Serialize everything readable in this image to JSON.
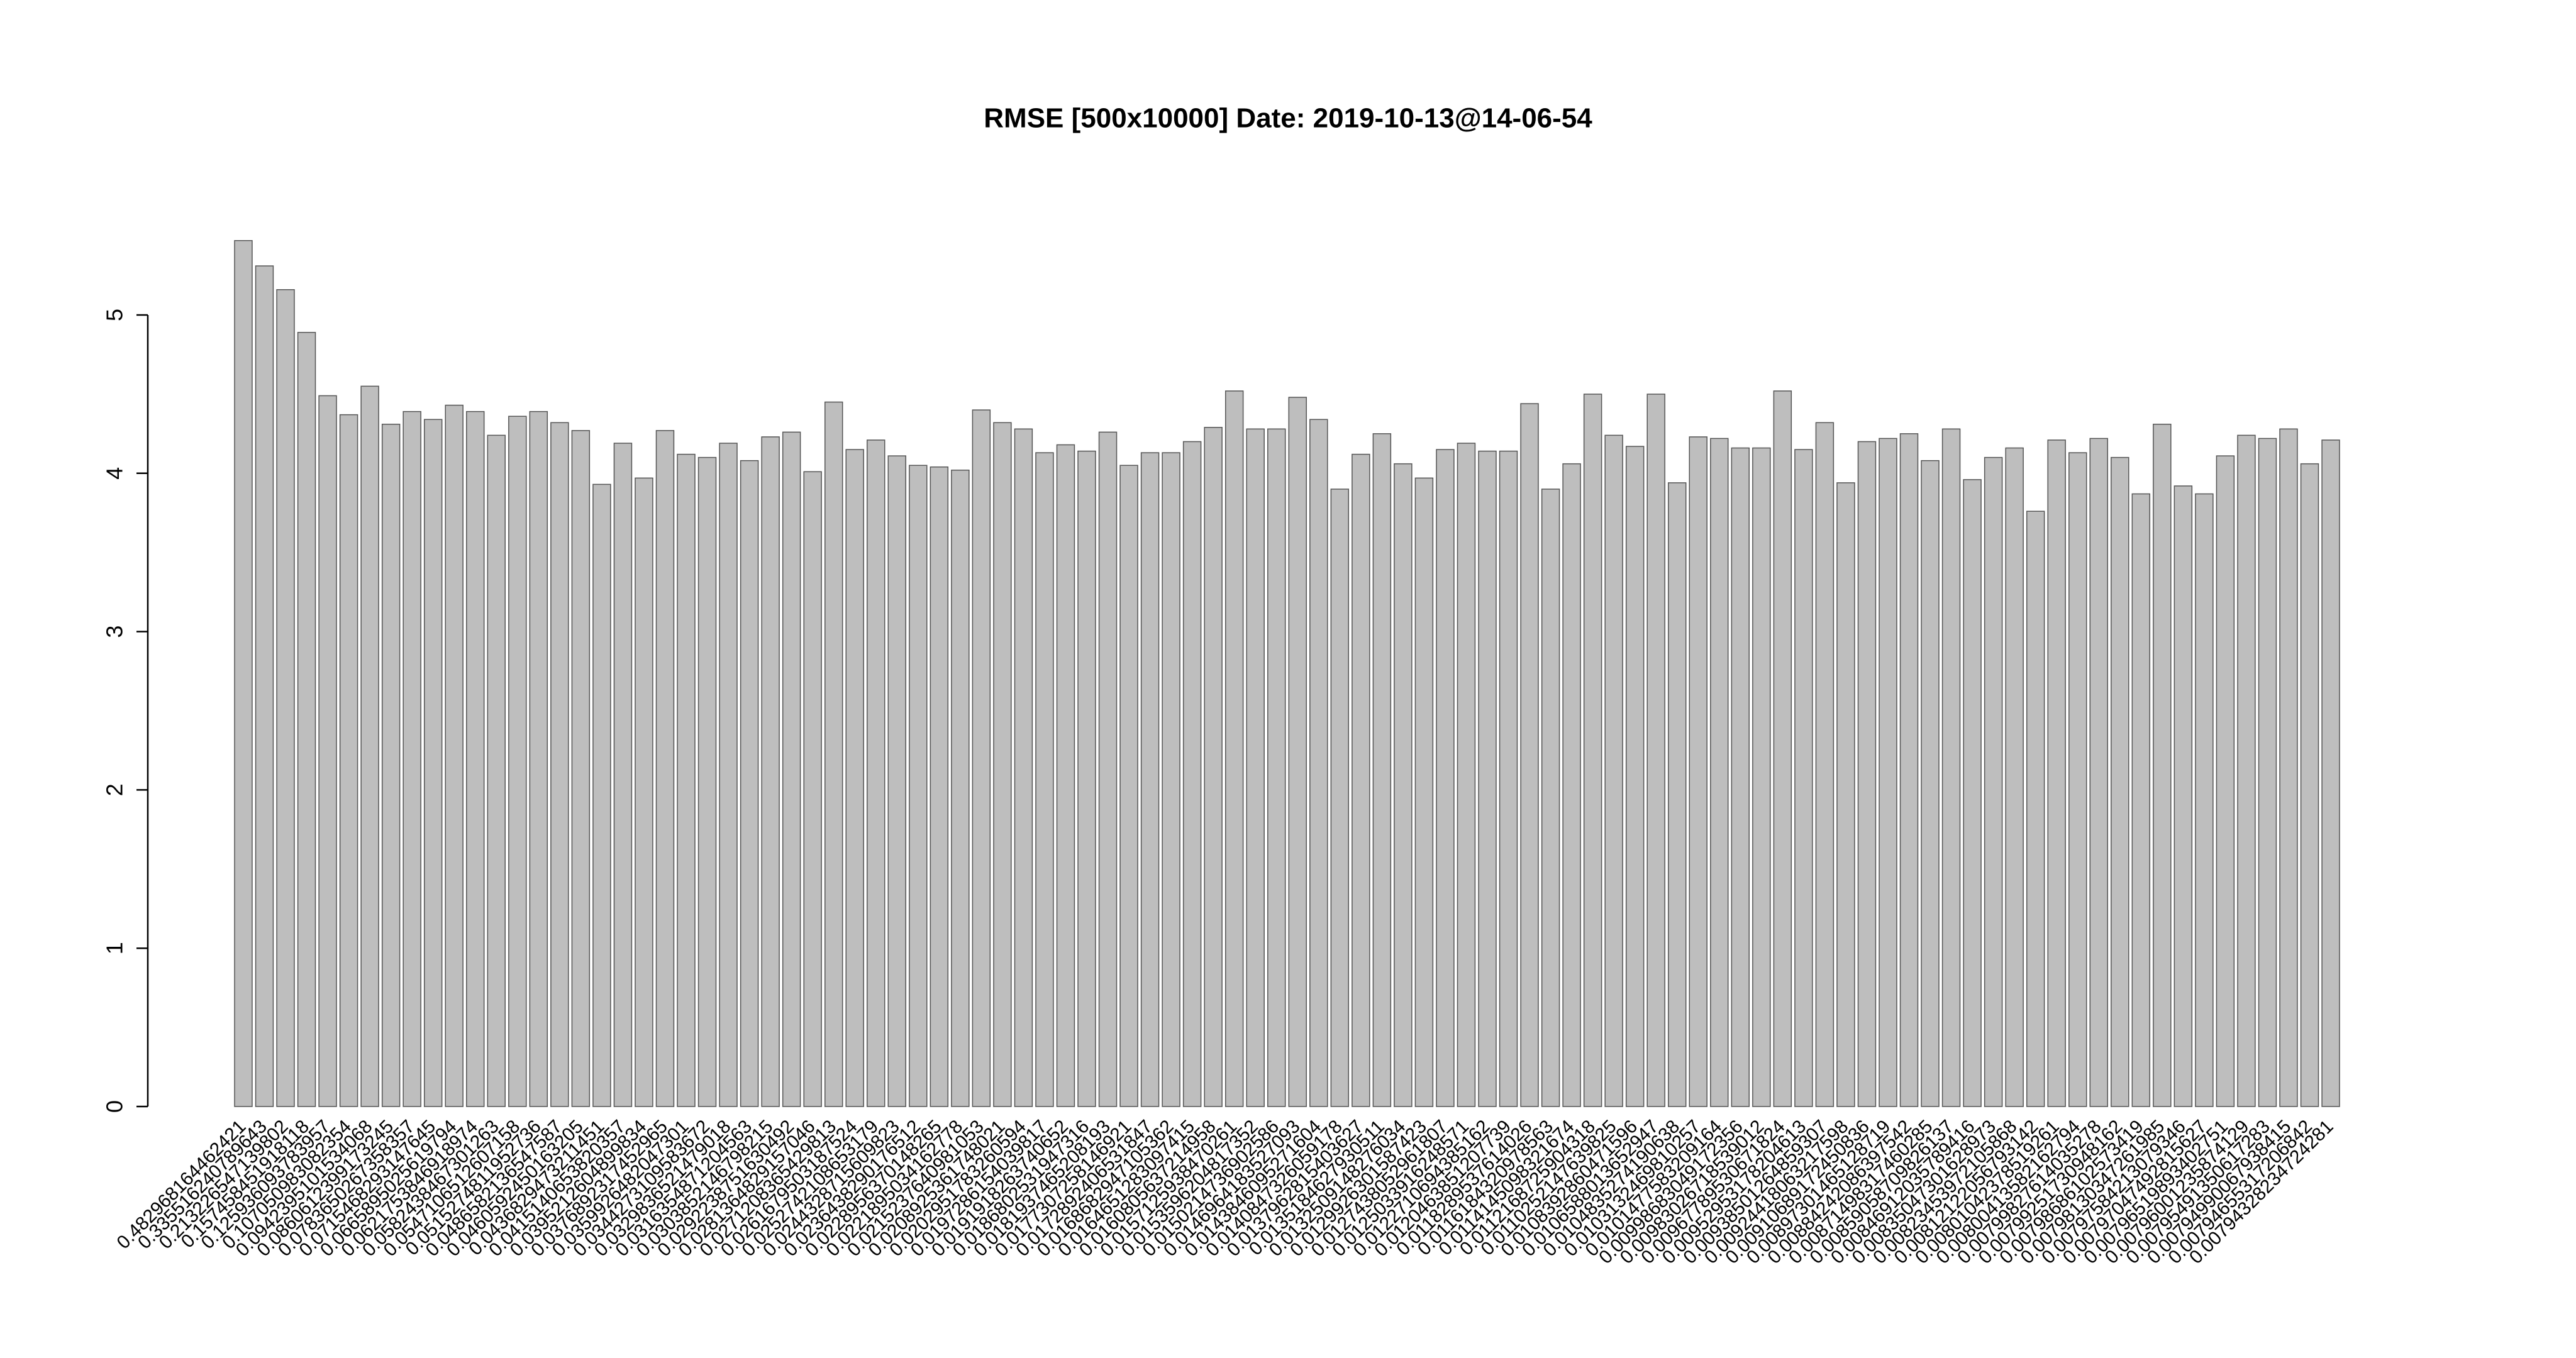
{
  "chart_data": {
    "type": "bar",
    "title": "RMSE [500x10000] Date: 2019-10-13@14-06-54",
    "categories": [
      "0.482968164462421",
      "0.335516240789643",
      "0.213226547139802",
      "0.157458451918118",
      "0.125936093783957",
      "0.107050983082354",
      "0.0942395101534068",
      "0.0860612399173245",
      "0.0783650267358357",
      "0.0715468293147645",
      "0.0665895025619794",
      "0.0621753846918974",
      "0.0582438467301263",
      "0.0547106512607158",
      "0.0515274811952736",
      "0.0486582136547587",
      "0.0460592450163205",
      "0.0436829473211451",
      "0.0415140653820357",
      "0.0395212604899834",
      "0.0376892317452965",
      "0.0359926482047301",
      "0.0344273109583672",
      "0.0329836521479018",
      "0.0316354871204563",
      "0.0303852146798215",
      "0.0292238751630492",
      "0.0281364829157046",
      "0.0271208365429813",
      "0.0261679503187524",
      "0.0252742108653179",
      "0.0244328715609823",
      "0.0236438290176512",
      "0.0228956370148265",
      "0.0221895034162778",
      "0.0215237640981053",
      "0.0208925361748021",
      "0.0202951783260594",
      "0.0197286154039817",
      "0.0191918263740652",
      "0.0186802531947316",
      "0.0181937465208193",
      "0.0177307258146921",
      "0.0172892406531847",
      "0.0168682947105362",
      "0.0164651283097415",
      "0.0160805637214958",
      "0.0157125938470261",
      "0.0153596204817352",
      "0.0150214736902586",
      "0.0146964183527093",
      "0.0143846095271604",
      "0.0140847326059178",
      "0.0137962815403627",
      "0.0135184627930511",
      "0.0132509148276034",
      "0.0129926301587423",
      "0.0127438052961807",
      "0.0125033916248571",
      "0.0122710694385162",
      "0.0120463851207739",
      "0.0118289537614026",
      "0.0116184320978563",
      "0.0114145098321674",
      "0.0112168725904318",
      "0.0110252147639825",
      "0.0108392860471596",
      "0.0106588013652947",
      "0.0104835274190638",
      "0.0103132469810257",
      "0.0101477583209164",
      "0.00998683049172356",
      "0.00983026718539012",
      "0.00967789530671824",
      "0.00952953178204613",
      "0.00938501264859307",
      "0.00924418063217598",
      "0.00910689172450836",
      "0.00897301465128719",
      "0.00884242086397542",
      "0.00871498317460285",
      "0.00859058709826137",
      "0.00846912035789416",
      "0.00835047301628973",
      "0.00823453972105868",
      "0.00812122056793142",
      "0.00801042378519261",
      "0.00800413582162794",
      "0.00799827614035278",
      "0.00799251730948162",
      "0.00798686102573419",
      "0.00798130347261985",
      "0.00797584213079346",
      "0.00797047492815627",
      "0.00796519893402751",
      "0.00796001235874129",
      "0.00795491350617283",
      "0.00794990067938415",
      "0.00794655317206842",
      "0.00794328234724281"
    ],
    "values": [
      5.47,
      5.31,
      5.16,
      4.89,
      4.49,
      4.37,
      4.55,
      4.31,
      4.39,
      4.34,
      4.43,
      4.39,
      4.24,
      4.36,
      4.39,
      4.32,
      4.27,
      3.93,
      4.19,
      3.97,
      4.27,
      4.12,
      4.1,
      4.19,
      4.08,
      4.23,
      4.26,
      4.01,
      4.45,
      4.15,
      4.21,
      4.11,
      4.05,
      4.04,
      4.02,
      4.4,
      4.32,
      4.28,
      4.13,
      4.18,
      4.14,
      4.26,
      4.05,
      4.13,
      4.13,
      4.2,
      4.29,
      4.52,
      4.28,
      4.28,
      4.48,
      4.34,
      3.9,
      4.12,
      4.25,
      4.06,
      3.97,
      4.15,
      4.19,
      4.14,
      4.14,
      4.44,
      3.9,
      4.06,
      4.5,
      4.24,
      4.17,
      4.5,
      3.94,
      4.23,
      4.22,
      4.16,
      4.16,
      4.52,
      4.15,
      4.32,
      3.94,
      4.2,
      4.22,
      4.25,
      4.08,
      4.28,
      3.96,
      4.1,
      4.16,
      3.76,
      4.21,
      4.13,
      4.22,
      4.1,
      3.87,
      4.31,
      3.92,
      3.87,
      4.11,
      4.24,
      4.22,
      4.28,
      4.06,
      4.21
    ],
    "color": "#bebebe",
    "ylim": [
      0,
      5.7
    ],
    "yticks": [
      0,
      1,
      2,
      3,
      4,
      5
    ]
  }
}
